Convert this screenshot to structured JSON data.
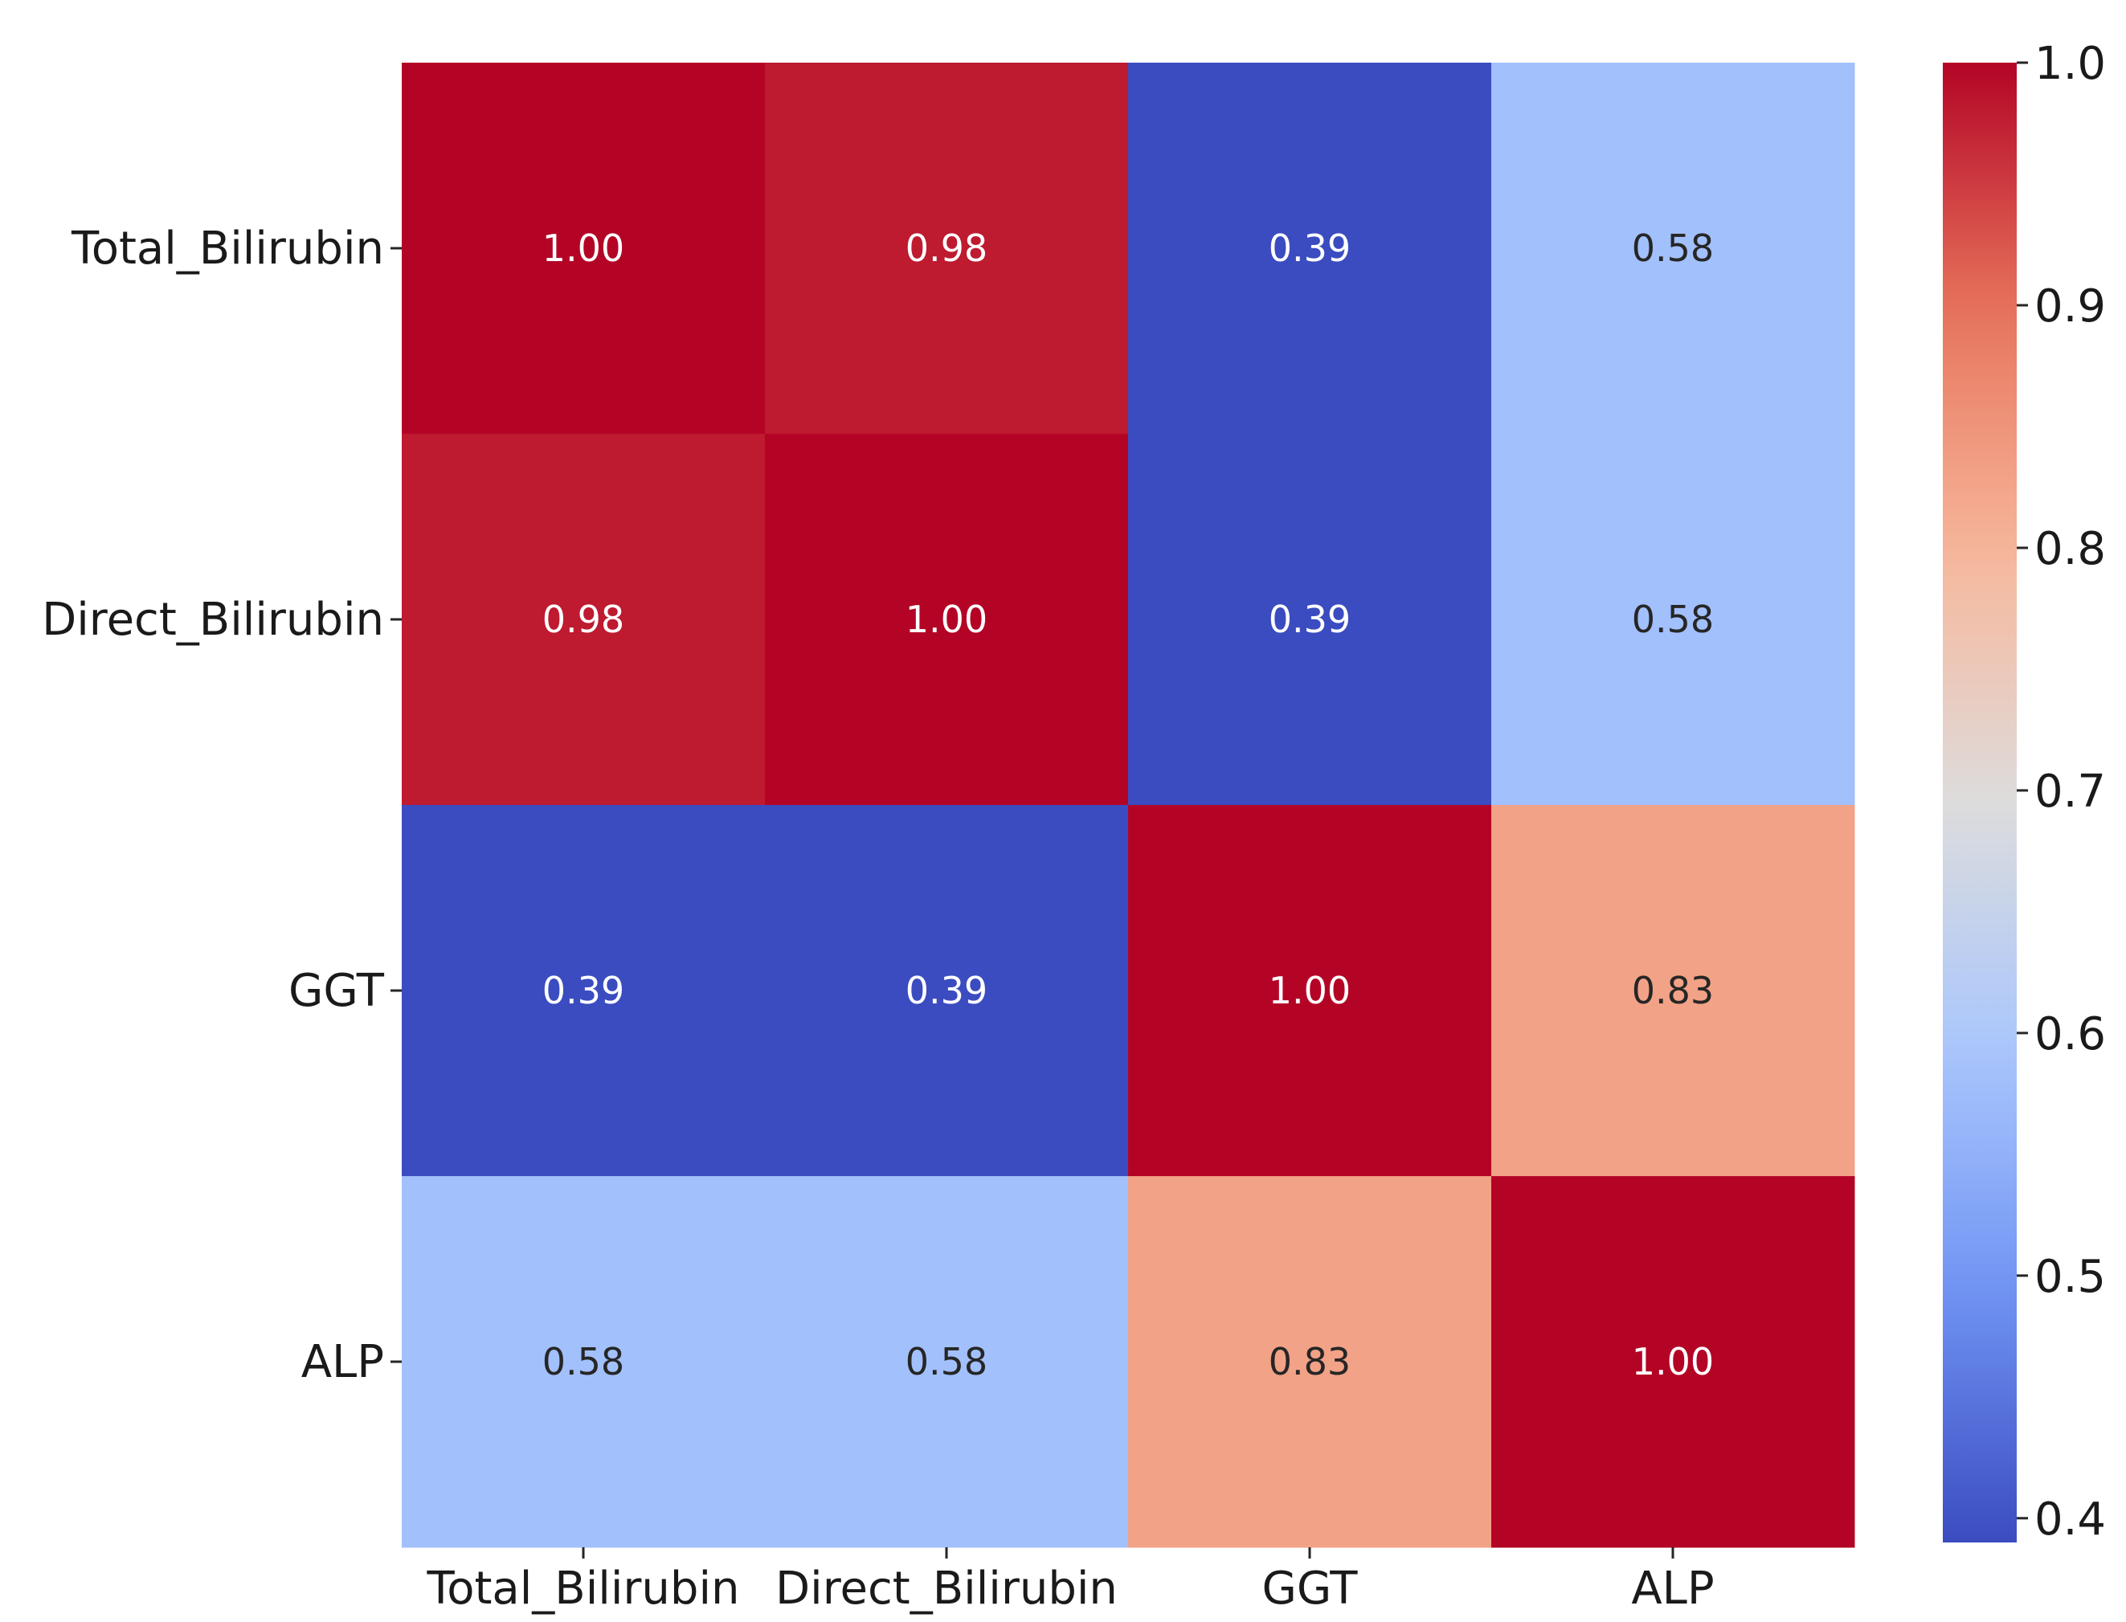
{
  "chart_data": {
    "type": "heatmap",
    "title": "",
    "xlabel": "",
    "ylabel": "",
    "rows": [
      "Total_Bilirubin",
      "Direct_Bilirubin",
      "GGT",
      "ALP"
    ],
    "columns": [
      "Total_Bilirubin",
      "Direct_Bilirubin",
      "GGT",
      "ALP"
    ],
    "values": [
      [
        1.0,
        0.98,
        0.39,
        0.58
      ],
      [
        0.98,
        1.0,
        0.39,
        0.58
      ],
      [
        0.39,
        0.39,
        1.0,
        0.83
      ],
      [
        0.58,
        0.58,
        0.83,
        1.0
      ]
    ],
    "annotations": [
      [
        "1.00",
        "0.98",
        "0.39",
        "0.58"
      ],
      [
        "0.98",
        "1.00",
        "0.39",
        "0.58"
      ],
      [
        "0.39",
        "0.39",
        "1.00",
        "0.83"
      ],
      [
        "0.58",
        "0.58",
        "0.83",
        "1.00"
      ]
    ],
    "colormap": "coolwarm",
    "colorbar": {
      "range": [
        0.39,
        1.0
      ],
      "ticks": [
        0.4,
        0.5,
        0.6,
        0.7,
        0.8,
        0.9,
        1.0
      ],
      "tick_labels": [
        "0.4",
        "0.5",
        "0.6",
        "0.7",
        "0.8",
        "0.9",
        "1.0"
      ]
    },
    "colors": {
      "coolwarm_stops": [
        "#3b4cc0",
        "#6f92f3",
        "#aac7fd",
        "#dddcdc",
        "#f7b89c",
        "#e7745b",
        "#b40426"
      ],
      "annotation_light": "#ffffff",
      "annotation_dark": "#262626"
    }
  }
}
